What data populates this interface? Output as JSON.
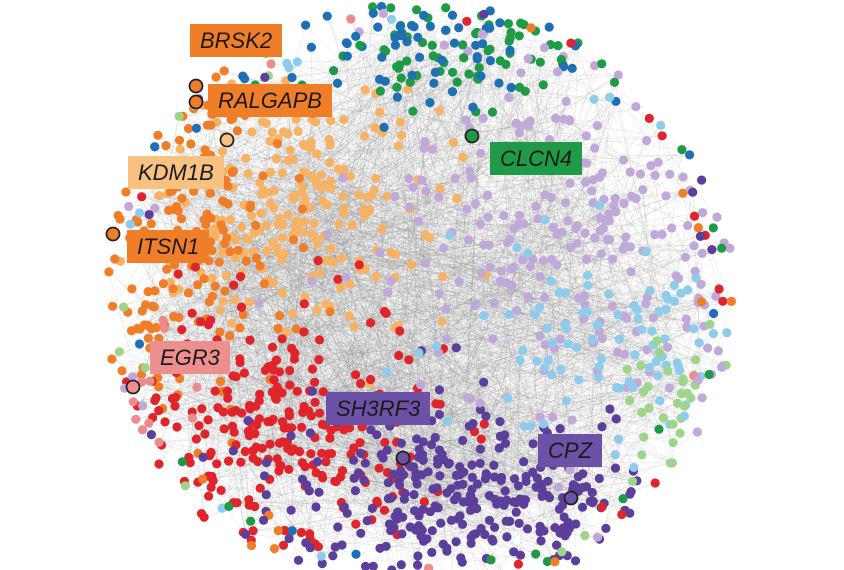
{
  "labels": {
    "brsk2": "BRSK2",
    "ralgapb": "RALGAPB",
    "kdm1b": "KDM1B",
    "itsn1": "ITSN1",
    "clcn4": "CLCN4",
    "egr3": "EGR3",
    "sh3rf3": "SH3RF3",
    "cpz": "CPZ"
  },
  "colors": {
    "orange": "#f07d28",
    "light_orange": "#f6b366",
    "green": "#1f9a47",
    "blue": "#1f6fb4",
    "lavender": "#c0a9d8",
    "light_blue": "#8fcbea",
    "red": "#e0242b",
    "purple": "#5c3f9b",
    "pink": "#ea8b8e",
    "light_green": "#9fd58b",
    "edge": "#8a8a8a",
    "label_orange": "#f07d28",
    "label_light_orange": "#f7c182",
    "label_green": "#1f9a47",
    "label_pink": "#ed8f8f",
    "label_purple": "#6c52a6"
  }
}
